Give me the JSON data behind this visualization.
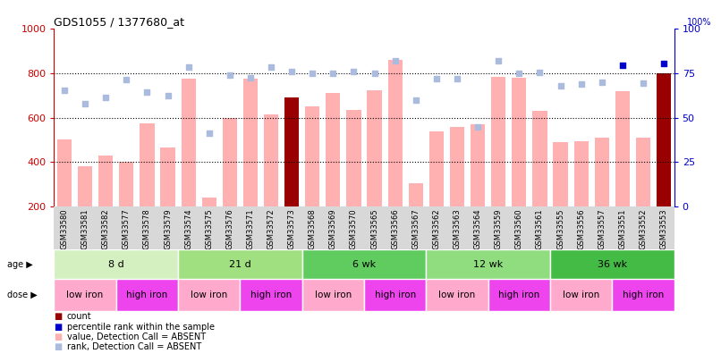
{
  "title": "GDS1055 / 1377680_at",
  "samples": [
    "GSM33580",
    "GSM33581",
    "GSM33582",
    "GSM33577",
    "GSM33578",
    "GSM33579",
    "GSM33574",
    "GSM33575",
    "GSM33576",
    "GSM33571",
    "GSM33572",
    "GSM33573",
    "GSM33568",
    "GSM33569",
    "GSM33570",
    "GSM33565",
    "GSM33566",
    "GSM33567",
    "GSM33562",
    "GSM33563",
    "GSM33564",
    "GSM33559",
    "GSM33560",
    "GSM33561",
    "GSM33555",
    "GSM33556",
    "GSM33557",
    "GSM33551",
    "GSM33552",
    "GSM33553"
  ],
  "bar_values": [
    500,
    380,
    430,
    400,
    575,
    465,
    775,
    238,
    600,
    775,
    615,
    690,
    650,
    710,
    635,
    725,
    860,
    305,
    540,
    560,
    570,
    785,
    780,
    630,
    490,
    495,
    510,
    720,
    510,
    800
  ],
  "bar_is_dark": [
    false,
    false,
    false,
    false,
    false,
    false,
    false,
    false,
    false,
    false,
    false,
    true,
    false,
    false,
    false,
    false,
    false,
    false,
    false,
    false,
    false,
    false,
    false,
    false,
    false,
    false,
    false,
    false,
    false,
    true
  ],
  "rank_values": [
    725,
    665,
    693,
    770,
    715,
    700,
    830,
    530,
    790,
    780,
    830,
    810,
    800,
    800,
    810,
    800,
    855,
    680,
    775,
    775,
    560,
    855,
    800,
    805,
    745,
    750,
    760,
    835,
    755,
    845
  ],
  "rank_is_dark": [
    false,
    false,
    false,
    false,
    false,
    false,
    false,
    false,
    false,
    false,
    false,
    false,
    false,
    false,
    false,
    false,
    false,
    false,
    false,
    false,
    false,
    false,
    false,
    false,
    false,
    false,
    false,
    true,
    false,
    true
  ],
  "ylim_left": [
    200,
    1000
  ],
  "ylim_right": [
    0,
    100
  ],
  "yticks_left": [
    200,
    400,
    600,
    800,
    1000
  ],
  "yticks_right": [
    0,
    25,
    50,
    75,
    100
  ],
  "hlines": [
    400,
    600,
    800
  ],
  "age_groups": [
    {
      "label": "8 d",
      "start": 0,
      "end": 6,
      "color": "#d4f0c0"
    },
    {
      "label": "21 d",
      "start": 6,
      "end": 12,
      "color": "#a0e080"
    },
    {
      "label": "6 wk",
      "start": 12,
      "end": 18,
      "color": "#60cc60"
    },
    {
      "label": "12 wk",
      "start": 18,
      "end": 24,
      "color": "#90dd80"
    },
    {
      "label": "36 wk",
      "start": 24,
      "end": 30,
      "color": "#44bb44"
    }
  ],
  "dose_groups": [
    {
      "label": "low iron",
      "start": 0,
      "end": 3,
      "color": "#ffaacc"
    },
    {
      "label": "high iron",
      "start": 3,
      "end": 6,
      "color": "#ee44ee"
    },
    {
      "label": "low iron",
      "start": 6,
      "end": 9,
      "color": "#ffaacc"
    },
    {
      "label": "high iron",
      "start": 9,
      "end": 12,
      "color": "#ee44ee"
    },
    {
      "label": "low iron",
      "start": 12,
      "end": 15,
      "color": "#ffaacc"
    },
    {
      "label": "high iron",
      "start": 15,
      "end": 18,
      "color": "#ee44ee"
    },
    {
      "label": "low iron",
      "start": 18,
      "end": 21,
      "color": "#ffaacc"
    },
    {
      "label": "high iron",
      "start": 21,
      "end": 24,
      "color": "#ee44ee"
    },
    {
      "label": "low iron",
      "start": 24,
      "end": 27,
      "color": "#ffaacc"
    },
    {
      "label": "high iron",
      "start": 27,
      "end": 30,
      "color": "#ee44ee"
    }
  ],
  "bar_color_light": "#ffb0b0",
  "bar_color_dark": "#990000",
  "rank_color_light": "#aabbdd",
  "rank_color_dark": "#0000cc",
  "legend_items": [
    {
      "color": "#990000",
      "label": "count"
    },
    {
      "color": "#0000cc",
      "label": "percentile rank within the sample"
    },
    {
      "color": "#ffb0b0",
      "label": "value, Detection Call = ABSENT"
    },
    {
      "color": "#aabbdd",
      "label": "rank, Detection Call = ABSENT"
    }
  ],
  "ylabel_left_color": "#cc0000",
  "ylabel_right_color": "#0000cc",
  "right_axis_label": "100%",
  "tick_label_bg": "#d8d8d8"
}
